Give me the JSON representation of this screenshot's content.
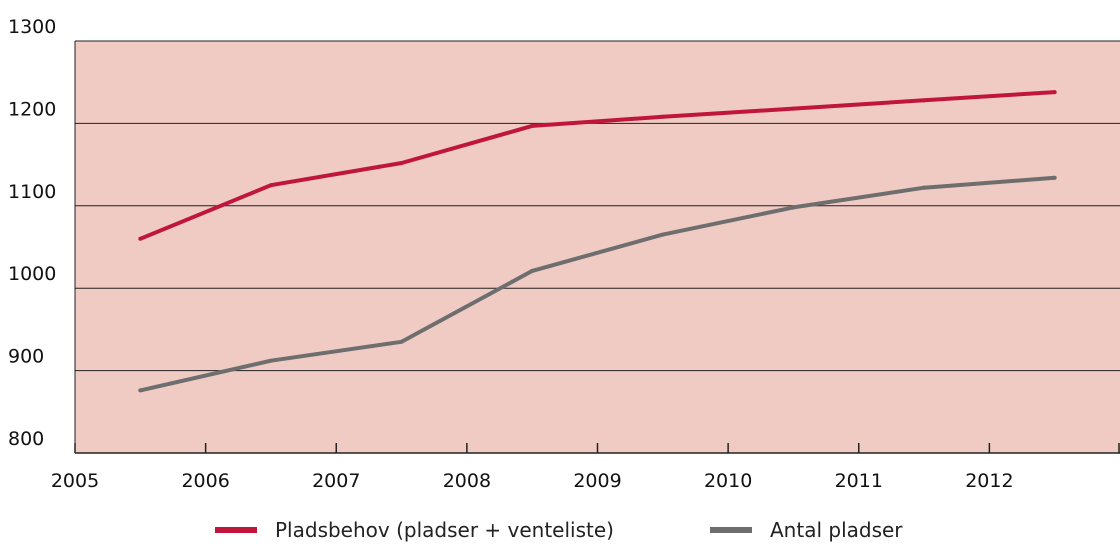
{
  "chart_data": {
    "type": "line",
    "title": "",
    "xlabel": "",
    "ylabel": "",
    "xlim": [
      2005,
      2013
    ],
    "ylim": [
      800,
      1300
    ],
    "yticks": [
      800,
      900,
      1000,
      1100,
      1200,
      1300
    ],
    "xticks": [
      2005,
      2006,
      2007,
      2008,
      2009,
      2010,
      2011,
      2012
    ],
    "xtick_labels": [
      "2005",
      "2006",
      "2007",
      "2008",
      "2009",
      "2010",
      "2011",
      "2012"
    ],
    "ytick_labels": [
      "800",
      "900",
      "1000",
      "1100",
      "1200",
      "1300"
    ],
    "grid": true,
    "legend": "bottom",
    "plot_background": "#efcbc4",
    "series": [
      {
        "name": "Pladsbehov (pladser + venteliste)",
        "color": "#c0163b",
        "x": [
          2005.5,
          2006.5,
          2007.5,
          2008.5,
          2009.5,
          2010.5,
          2011.5,
          2012.5
        ],
        "values": [
          1060,
          1125,
          1152,
          1197,
          1208,
          1218,
          1228,
          1238
        ]
      },
      {
        "name": "Antal pladser",
        "color": "#6e6e6e",
        "x": [
          2005.5,
          2006.5,
          2007.5,
          2008.5,
          2009.5,
          2010.5,
          2011.5,
          2012.5
        ],
        "values": [
          876,
          912,
          935,
          1021,
          1065,
          1098,
          1122,
          1134
        ]
      }
    ]
  }
}
